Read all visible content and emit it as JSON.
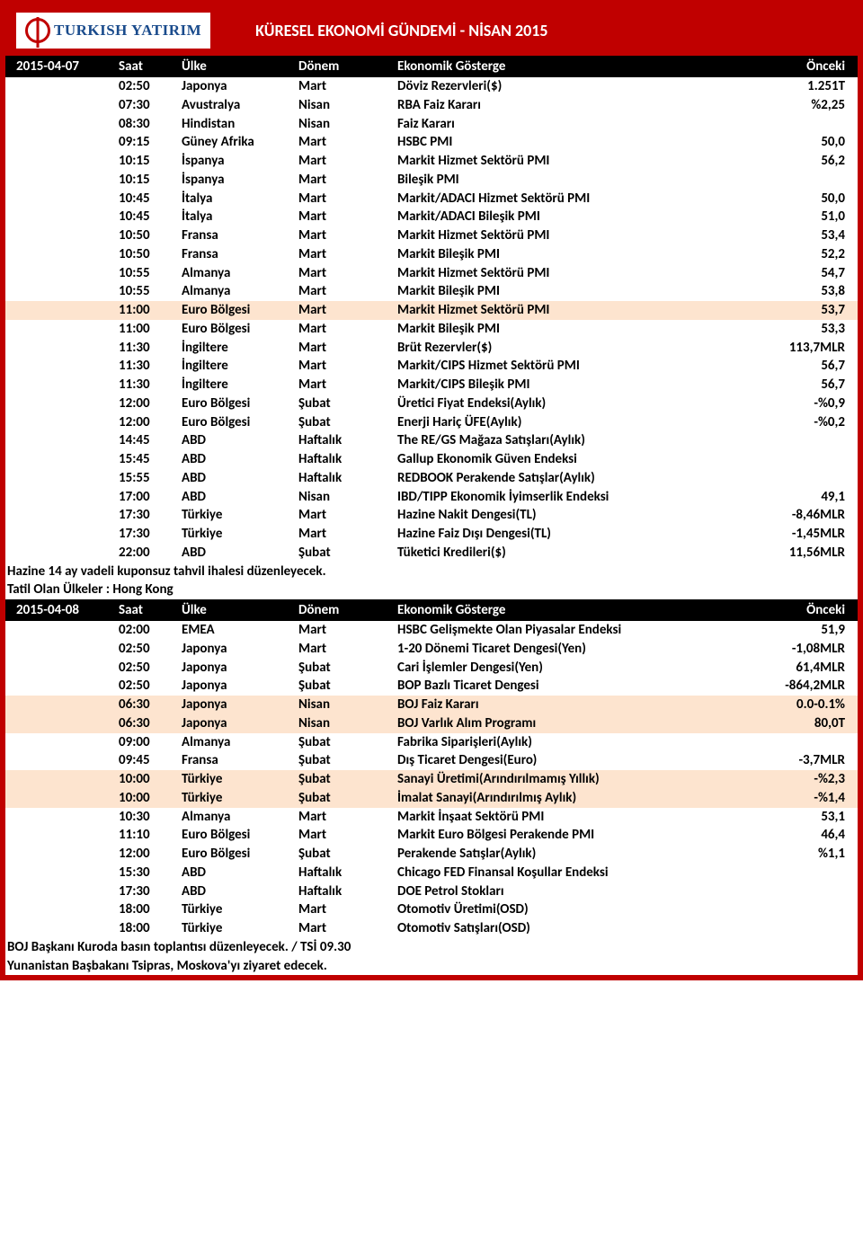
{
  "header": {
    "logo_text": "TURKISH YATIRIM",
    "title": "KÜRESEL EKONOMİ GÜNDEMİ - NİSAN 2015"
  },
  "columns": {
    "saat": "Saat",
    "ulke": "Ülke",
    "donem": "Dönem",
    "gosterge": "Ekonomik Gösterge",
    "onceki": "Önceki"
  },
  "sections": [
    {
      "date": "2015-04-07",
      "rows": [
        {
          "saat": "02:50",
          "ulke": "Japonya",
          "donem": "Mart",
          "gosterge": "Döviz Rezervleri($)",
          "onceki": "1.251T",
          "hl": false
        },
        {
          "saat": "07:30",
          "ulke": "Avustralya",
          "donem": "Nisan",
          "gosterge": "RBA Faiz Kararı",
          "onceki": "%2,25",
          "hl": false
        },
        {
          "saat": "08:30",
          "ulke": "Hindistan",
          "donem": "Nisan",
          "gosterge": "Faiz Kararı",
          "onceki": "",
          "hl": false
        },
        {
          "saat": "09:15",
          "ulke": "Güney Afrika",
          "donem": "Mart",
          "gosterge": "HSBC PMI",
          "onceki": "50,0",
          "hl": false
        },
        {
          "saat": "10:15",
          "ulke": "İspanya",
          "donem": "Mart",
          "gosterge": "Markit Hizmet Sektörü PMI",
          "onceki": "56,2",
          "hl": false
        },
        {
          "saat": "10:15",
          "ulke": "İspanya",
          "donem": "Mart",
          "gosterge": "Bileşik PMI",
          "onceki": "",
          "hl": false
        },
        {
          "saat": "10:45",
          "ulke": "İtalya",
          "donem": "Mart",
          "gosterge": "Markit/ADACI Hizmet Sektörü PMI",
          "onceki": "50,0",
          "hl": false
        },
        {
          "saat": "10:45",
          "ulke": "İtalya",
          "donem": "Mart",
          "gosterge": "Markit/ADACI Bileşik PMI",
          "onceki": "51,0",
          "hl": false
        },
        {
          "saat": "10:50",
          "ulke": "Fransa",
          "donem": "Mart",
          "gosterge": "Markit Hizmet Sektörü PMI",
          "onceki": "53,4",
          "hl": false
        },
        {
          "saat": "10:50",
          "ulke": "Fransa",
          "donem": "Mart",
          "gosterge": "Markit Bileşik PMI",
          "onceki": "52,2",
          "hl": false
        },
        {
          "saat": "10:55",
          "ulke": "Almanya",
          "donem": "Mart",
          "gosterge": "Markit Hizmet Sektörü PMI",
          "onceki": "54,7",
          "hl": false
        },
        {
          "saat": "10:55",
          "ulke": "Almanya",
          "donem": "Mart",
          "gosterge": "Markit Bileşik PMI",
          "onceki": "53,8",
          "hl": false
        },
        {
          "saat": "11:00",
          "ulke": "Euro Bölgesi",
          "donem": "Mart",
          "gosterge": "Markit Hizmet Sektörü PMI",
          "onceki": "53,7",
          "hl": true
        },
        {
          "saat": "11:00",
          "ulke": "Euro Bölgesi",
          "donem": "Mart",
          "gosterge": "Markit Bileşik PMI",
          "onceki": "53,3",
          "hl": false
        },
        {
          "saat": "11:30",
          "ulke": "İngiltere",
          "donem": "Mart",
          "gosterge": "Brüt Rezervler($)",
          "onceki": "113,7MLR",
          "hl": false
        },
        {
          "saat": "11:30",
          "ulke": "İngiltere",
          "donem": "Mart",
          "gosterge": "Markit/CIPS Hizmet Sektörü PMI",
          "onceki": "56,7",
          "hl": false
        },
        {
          "saat": "11:30",
          "ulke": "İngiltere",
          "donem": "Mart",
          "gosterge": "Markit/CIPS Bileşik PMI",
          "onceki": "56,7",
          "hl": false
        },
        {
          "saat": "12:00",
          "ulke": "Euro Bölgesi",
          "donem": "Şubat",
          "gosterge": "Üretici Fiyat Endeksi(Aylık)",
          "onceki": "-%0,9",
          "hl": false
        },
        {
          "saat": "12:00",
          "ulke": "Euro Bölgesi",
          "donem": "Şubat",
          "gosterge": "Enerji Hariç ÜFE(Aylık)",
          "onceki": "-%0,2",
          "hl": false
        },
        {
          "saat": "14:45",
          "ulke": "ABD",
          "donem": "Haftalık",
          "gosterge": "The RE/GS Mağaza Satışları(Aylık)",
          "onceki": "",
          "hl": false
        },
        {
          "saat": "15:45",
          "ulke": "ABD",
          "donem": "Haftalık",
          "gosterge": "Gallup Ekonomik Güven Endeksi",
          "onceki": "",
          "hl": false
        },
        {
          "saat": "15:55",
          "ulke": "ABD",
          "donem": "Haftalık",
          "gosterge": "REDBOOK Perakende Satışlar(Aylık)",
          "onceki": "",
          "hl": false
        },
        {
          "saat": "17:00",
          "ulke": "ABD",
          "donem": "Nisan",
          "gosterge": "IBD/TIPP Ekonomik İyimserlik Endeksi",
          "onceki": "49,1",
          "hl": false
        },
        {
          "saat": "17:30",
          "ulke": "Türkiye",
          "donem": "Mart",
          "gosterge": "Hazine Nakit Dengesi(TL)",
          "onceki": "-8,46MLR",
          "hl": false
        },
        {
          "saat": "17:30",
          "ulke": "Türkiye",
          "donem": "Mart",
          "gosterge": "Hazine Faiz Dışı Dengesi(TL)",
          "onceki": "-1,45MLR",
          "hl": false
        },
        {
          "saat": "22:00",
          "ulke": "ABD",
          "donem": "Şubat",
          "gosterge": "Tüketici Kredileri($)",
          "onceki": "11,56MLR",
          "hl": false
        }
      ],
      "notes": [
        "Hazine 14 ay vadeli kuponsuz tahvil ihalesi düzenleyecek.",
        "Tatil Olan Ülkeler : Hong Kong"
      ]
    },
    {
      "date": "2015-04-08",
      "rows": [
        {
          "saat": "02:00",
          "ulke": "EMEA",
          "donem": "Mart",
          "gosterge": "HSBC Gelişmekte Olan Piyasalar Endeksi",
          "onceki": "51,9",
          "hl": false
        },
        {
          "saat": "02:50",
          "ulke": "Japonya",
          "donem": "Mart",
          "gosterge": "1-20 Dönemi Ticaret Dengesi(Yen)",
          "onceki": "-1,08MLR",
          "hl": false
        },
        {
          "saat": "02:50",
          "ulke": "Japonya",
          "donem": "Şubat",
          "gosterge": "Cari İşlemler Dengesi(Yen)",
          "onceki": "61,4MLR",
          "hl": false
        },
        {
          "saat": "02:50",
          "ulke": "Japonya",
          "donem": "Şubat",
          "gosterge": "BOP Bazlı Ticaret Dengesi",
          "onceki": "-864,2MLR",
          "hl": false
        },
        {
          "saat": "06:30",
          "ulke": "Japonya",
          "donem": "Nisan",
          "gosterge": "BOJ Faiz Kararı",
          "onceki": "0.0-0.1%",
          "hl": true
        },
        {
          "saat": "06:30",
          "ulke": "Japonya",
          "donem": "Nisan",
          "gosterge": "BOJ Varlık Alım Programı",
          "onceki": "80,0T",
          "hl": true
        },
        {
          "saat": "09:00",
          "ulke": "Almanya",
          "donem": "Şubat",
          "gosterge": "Fabrika Siparişleri(Aylık)",
          "onceki": "",
          "hl": false
        },
        {
          "saat": "09:45",
          "ulke": "Fransa",
          "donem": "Şubat",
          "gosterge": "Dış Ticaret Dengesi(Euro)",
          "onceki": "-3,7MLR",
          "hl": false
        },
        {
          "saat": "10:00",
          "ulke": "Türkiye",
          "donem": "Şubat",
          "gosterge": "Sanayi Üretimi(Arındırılmamış Yıllık)",
          "onceki": "-%2,3",
          "hl": true
        },
        {
          "saat": "10:00",
          "ulke": "Türkiye",
          "donem": "Şubat",
          "gosterge": "İmalat Sanayi(Arındırılmış Aylık)",
          "onceki": "-%1,4",
          "hl": true
        },
        {
          "saat": "10:30",
          "ulke": "Almanya",
          "donem": "Mart",
          "gosterge": "Markit İnşaat Sektörü PMI",
          "onceki": "53,1",
          "hl": false
        },
        {
          "saat": "11:10",
          "ulke": "Euro Bölgesi",
          "donem": "Mart",
          "gosterge": "Markit Euro Bölgesi Perakende PMI",
          "onceki": "46,4",
          "hl": false
        },
        {
          "saat": "12:00",
          "ulke": "Euro Bölgesi",
          "donem": "Şubat",
          "gosterge": "Perakende Satışlar(Aylık)",
          "onceki": "%1,1",
          "hl": false
        },
        {
          "saat": "15:30",
          "ulke": "ABD",
          "donem": "Haftalık",
          "gosterge": "Chicago FED Finansal Koşullar Endeksi",
          "onceki": "",
          "hl": false
        },
        {
          "saat": "17:30",
          "ulke": "ABD",
          "donem": "Haftalık",
          "gosterge": "DOE Petrol Stokları",
          "onceki": "",
          "hl": false
        },
        {
          "saat": "18:00",
          "ulke": "Türkiye",
          "donem": "Mart",
          "gosterge": "Otomotiv Üretimi(OSD)",
          "onceki": "",
          "hl": false
        },
        {
          "saat": "18:00",
          "ulke": "Türkiye",
          "donem": "Mart",
          "gosterge": "Otomotiv Satışları(OSD)",
          "onceki": "",
          "hl": false
        }
      ],
      "notes": [
        "BOJ Başkanı Kuroda basın toplantısı düzenleyecek. / TSİ 09.30",
        "Yunanistan Başbakanı Tsipras, Moskova'yı ziyaret edecek."
      ]
    }
  ]
}
